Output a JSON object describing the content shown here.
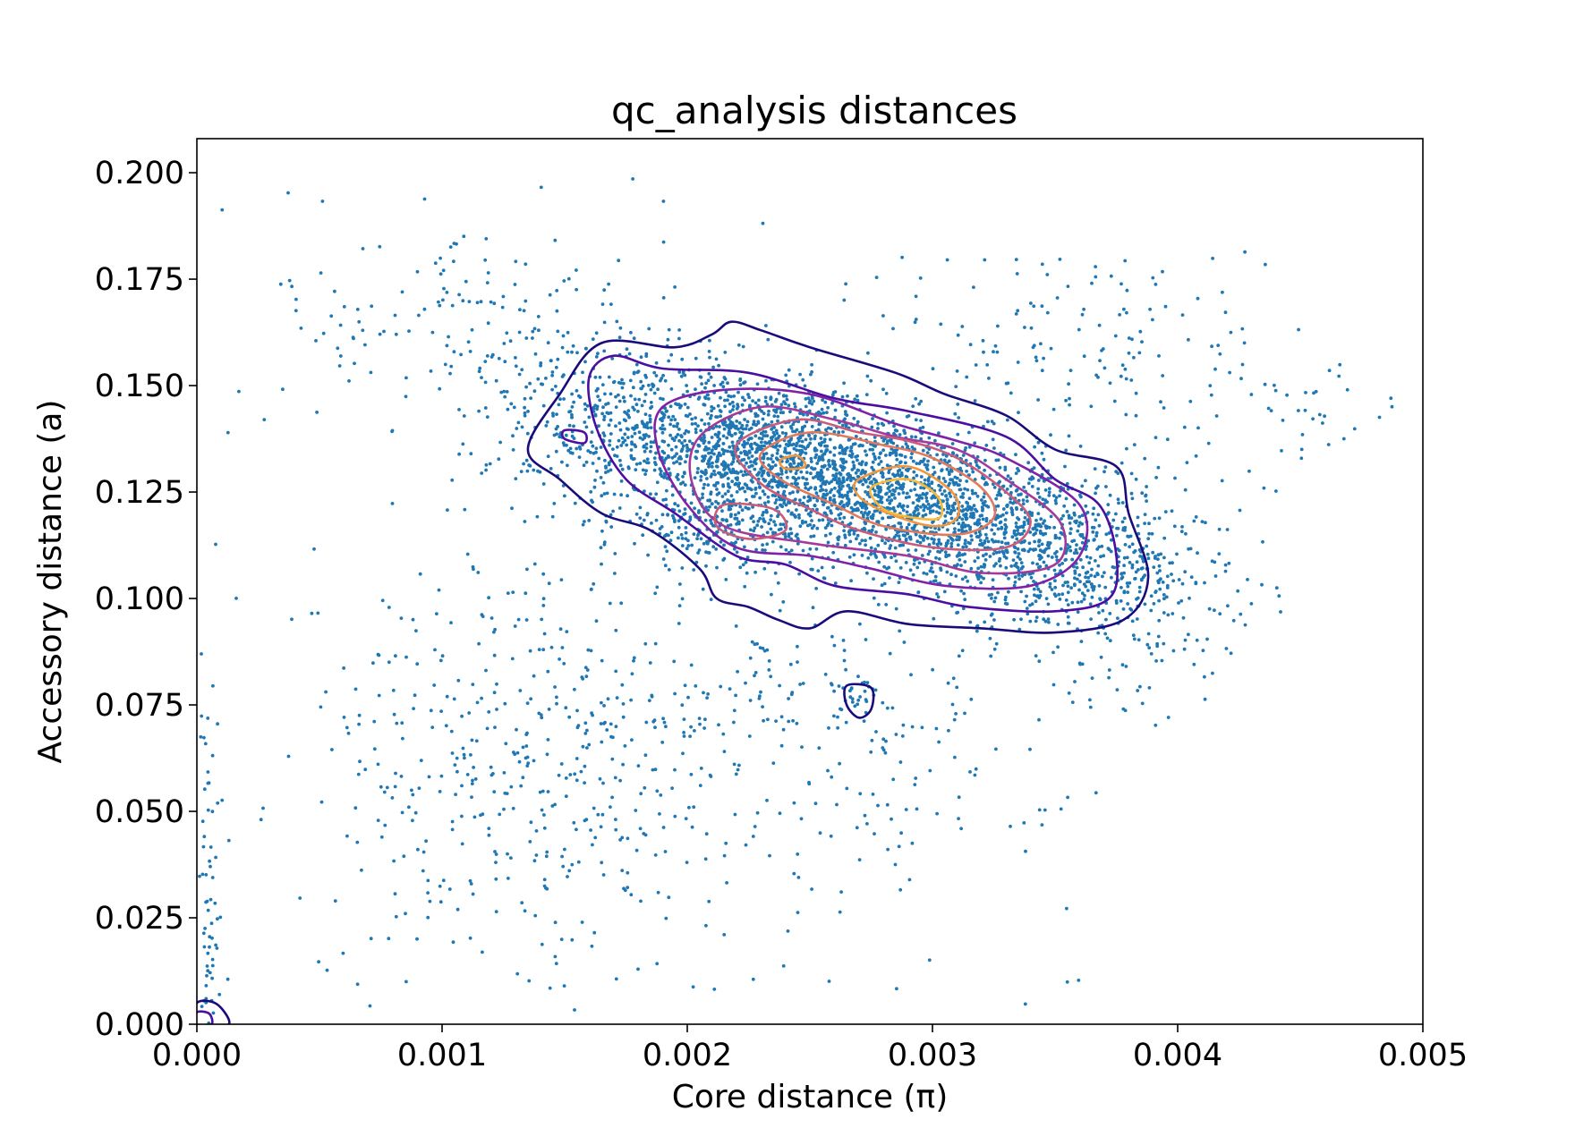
{
  "chart_data": {
    "type": "scatter",
    "title": "qc_analysis distances",
    "xlabel": "Core distance (π)",
    "ylabel": "Accessory distance (a)",
    "xlim": [
      0.0,
      0.005
    ],
    "ylim": [
      0.0,
      0.208
    ],
    "x_ticks": [
      "0.000",
      "0.001",
      "0.002",
      "0.003",
      "0.004",
      "0.005"
    ],
    "y_ticks": [
      "0.000",
      "0.025",
      "0.050",
      "0.075",
      "0.100",
      "0.125",
      "0.150",
      "0.175",
      "0.200"
    ],
    "grid": false,
    "legend": "none",
    "point_color": "#1f77b4",
    "density_clusters": [
      {
        "x": 0.00285,
        "y": 0.124,
        "sx": 0.00042,
        "sy": 0.0115,
        "rho": -0.55,
        "n": 1700
      },
      {
        "x": 0.0023,
        "y": 0.135,
        "sx": 0.00033,
        "sy": 0.0095,
        "rho": -0.3,
        "n": 900
      },
      {
        "x": 0.00215,
        "y": 0.118,
        "sx": 0.00022,
        "sy": 0.0055,
        "rho": 0.0,
        "n": 250
      },
      {
        "x": 0.0035,
        "y": 0.11,
        "sx": 0.00028,
        "sy": 0.01,
        "rho": -0.4,
        "n": 500
      },
      {
        "x": 0.0017,
        "y": 0.14,
        "sx": 0.00025,
        "sy": 0.012,
        "rho": 0.0,
        "n": 380
      },
      {
        "x": 0.0039,
        "y": 0.105,
        "sx": 0.00025,
        "sy": 0.015,
        "rho": 0.0,
        "n": 160
      },
      {
        "x": 0.0013,
        "y": 0.06,
        "sx": 0.00045,
        "sy": 0.025,
        "rho": 0.0,
        "n": 420
      },
      {
        "x": 0.0025,
        "y": 0.07,
        "sx": 0.00055,
        "sy": 0.022,
        "rho": 0.0,
        "n": 300
      },
      {
        "x": 0.0027,
        "y": 0.077,
        "sx": 5e-05,
        "sy": 0.0025,
        "rho": 0.0,
        "n": 25
      },
      {
        "x": 5e-05,
        "y": 0.03,
        "sx": 2e-05,
        "sy": 0.03,
        "rho": 0.0,
        "n": 70
      },
      {
        "x": 0.0011,
        "y": 0.165,
        "sx": 0.0004,
        "sy": 0.013,
        "rho": 0.0,
        "n": 160
      },
      {
        "x": 0.0036,
        "y": 0.16,
        "sx": 0.0004,
        "sy": 0.013,
        "rho": 0.0,
        "n": 140
      },
      {
        "x": 0.0045,
        "y": 0.145,
        "sx": 0.00025,
        "sy": 0.008,
        "rho": 0.0,
        "n": 40
      }
    ],
    "contour_colors": [
      "#1a0b7a",
      "#4a0ea0",
      "#7e22a6",
      "#a23a9c",
      "#c95b7c",
      "#e0795d",
      "#f0963f",
      "#f7b93a"
    ],
    "contours": [
      {
        "level": 1,
        "polygon": [
          [
            0.00135,
            0.135
          ],
          [
            0.00148,
            0.148
          ],
          [
            0.00165,
            0.16
          ],
          [
            0.00195,
            0.159
          ],
          [
            0.0021,
            0.162
          ],
          [
            0.00218,
            0.165
          ],
          [
            0.0023,
            0.163
          ],
          [
            0.0025,
            0.159
          ],
          [
            0.00285,
            0.153
          ],
          [
            0.00305,
            0.148
          ],
          [
            0.0033,
            0.143
          ],
          [
            0.0035,
            0.135
          ],
          [
            0.00375,
            0.131
          ],
          [
            0.0038,
            0.12
          ],
          [
            0.00388,
            0.105
          ],
          [
            0.00378,
            0.095
          ],
          [
            0.0035,
            0.092
          ],
          [
            0.0032,
            0.093
          ],
          [
            0.0029,
            0.094
          ],
          [
            0.00265,
            0.097
          ],
          [
            0.0025,
            0.093
          ],
          [
            0.00237,
            0.095
          ],
          [
            0.00225,
            0.098
          ],
          [
            0.00212,
            0.1
          ],
          [
            0.00205,
            0.107
          ],
          [
            0.00185,
            0.116
          ],
          [
            0.00165,
            0.12
          ],
          [
            0.00148,
            0.128
          ]
        ]
      },
      {
        "level": 1,
        "polygon": [
          [
            0.00265,
            0.0795
          ],
          [
            0.00275,
            0.079
          ],
          [
            0.00275,
            0.074
          ],
          [
            0.0027,
            0.072
          ],
          [
            0.00265,
            0.075
          ]
        ]
      },
      {
        "level": 1,
        "polygon": [
          [
            0.0,
            0.005
          ],
          [
            8e-05,
            0.0048
          ],
          [
            0.00013,
            0.0
          ],
          [
            0.0,
            0.0
          ]
        ]
      },
      {
        "level": 2,
        "polygon": [
          [
            0.0016,
            0.152
          ],
          [
            0.0017,
            0.157
          ],
          [
            0.0019,
            0.154
          ],
          [
            0.00225,
            0.153
          ],
          [
            0.0026,
            0.147
          ],
          [
            0.0029,
            0.144
          ],
          [
            0.0033,
            0.138
          ],
          [
            0.0035,
            0.128
          ],
          [
            0.00368,
            0.122
          ],
          [
            0.00375,
            0.11
          ],
          [
            0.00372,
            0.1
          ],
          [
            0.0035,
            0.097
          ],
          [
            0.00315,
            0.098
          ],
          [
            0.0029,
            0.101
          ],
          [
            0.0026,
            0.103
          ],
          [
            0.0024,
            0.108
          ],
          [
            0.0022,
            0.11
          ],
          [
            0.00195,
            0.12
          ],
          [
            0.00175,
            0.128
          ],
          [
            0.00163,
            0.14
          ]
        ]
      },
      {
        "level": 2,
        "polygon": [
          [
            0.0015,
            0.1395
          ],
          [
            0.00158,
            0.139
          ],
          [
            0.00158,
            0.1365
          ],
          [
            0.0015,
            0.1375
          ]
        ]
      },
      {
        "level": 2,
        "polygon": [
          [
            0.0,
            0.0028
          ],
          [
            5e-05,
            0.0025
          ],
          [
            6e-05,
            0.0
          ],
          [
            0.0,
            0.0
          ]
        ]
      },
      {
        "level": 3,
        "polygon": [
          [
            0.0019,
            0.145
          ],
          [
            0.00215,
            0.149
          ],
          [
            0.0025,
            0.148
          ],
          [
            0.00285,
            0.141
          ],
          [
            0.0031,
            0.137
          ],
          [
            0.0033,
            0.133
          ],
          [
            0.0036,
            0.122
          ],
          [
            0.0036,
            0.11
          ],
          [
            0.0034,
            0.103
          ],
          [
            0.00305,
            0.103
          ],
          [
            0.00275,
            0.107
          ],
          [
            0.0025,
            0.11
          ],
          [
            0.0022,
            0.112
          ],
          [
            0.002,
            0.122
          ],
          [
            0.00188,
            0.135
          ]
        ]
      },
      {
        "level": 4,
        "polygon": [
          [
            0.00205,
            0.138
          ],
          [
            0.0023,
            0.145
          ],
          [
            0.0026,
            0.142
          ],
          [
            0.00285,
            0.138
          ],
          [
            0.0031,
            0.135
          ],
          [
            0.0033,
            0.128
          ],
          [
            0.00352,
            0.118
          ],
          [
            0.0035,
            0.108
          ],
          [
            0.0032,
            0.106
          ],
          [
            0.0029,
            0.11
          ],
          [
            0.0025,
            0.113
          ],
          [
            0.00215,
            0.117
          ],
          [
            0.00202,
            0.127
          ]
        ]
      },
      {
        "level": 5,
        "polygon": [
          [
            0.00215,
            0.122
          ],
          [
            0.00235,
            0.121
          ],
          [
            0.0024,
            0.116
          ],
          [
            0.00225,
            0.114
          ],
          [
            0.00212,
            0.117
          ]
        ]
      },
      {
        "level": 5,
        "polygon": [
          [
            0.0022,
            0.136
          ],
          [
            0.00245,
            0.142
          ],
          [
            0.0027,
            0.139
          ],
          [
            0.0029,
            0.137
          ],
          [
            0.0031,
            0.133
          ],
          [
            0.0033,
            0.125
          ],
          [
            0.0034,
            0.118
          ],
          [
            0.0033,
            0.112
          ],
          [
            0.003,
            0.112
          ],
          [
            0.0027,
            0.116
          ],
          [
            0.0025,
            0.121
          ],
          [
            0.0023,
            0.127
          ]
        ]
      },
      {
        "level": 6,
        "polygon": [
          [
            0.0023,
            0.134
          ],
          [
            0.0025,
            0.139
          ],
          [
            0.0028,
            0.136
          ],
          [
            0.003,
            0.133
          ],
          [
            0.0032,
            0.126
          ],
          [
            0.00325,
            0.119
          ],
          [
            0.0031,
            0.115
          ],
          [
            0.0028,
            0.117
          ],
          [
            0.0026,
            0.122
          ],
          [
            0.00238,
            0.128
          ]
        ]
      },
      {
        "level": 7,
        "polygon": [
          [
            0.00238,
            0.1325
          ],
          [
            0.00245,
            0.1335
          ],
          [
            0.00248,
            0.131
          ],
          [
            0.0024,
            0.1305
          ]
        ]
      },
      {
        "level": 7,
        "polygon": [
          [
            0.0027,
            0.128
          ],
          [
            0.0029,
            0.131
          ],
          [
            0.00308,
            0.125
          ],
          [
            0.0031,
            0.119
          ],
          [
            0.003,
            0.117
          ],
          [
            0.00282,
            0.12
          ],
          [
            0.0027,
            0.124
          ]
        ]
      },
      {
        "level": 8,
        "polygon": [
          [
            0.00275,
            0.126
          ],
          [
            0.0029,
            0.128
          ],
          [
            0.00302,
            0.124
          ],
          [
            0.00303,
            0.119
          ],
          [
            0.00292,
            0.119
          ],
          [
            0.0028,
            0.121
          ]
        ]
      }
    ]
  }
}
